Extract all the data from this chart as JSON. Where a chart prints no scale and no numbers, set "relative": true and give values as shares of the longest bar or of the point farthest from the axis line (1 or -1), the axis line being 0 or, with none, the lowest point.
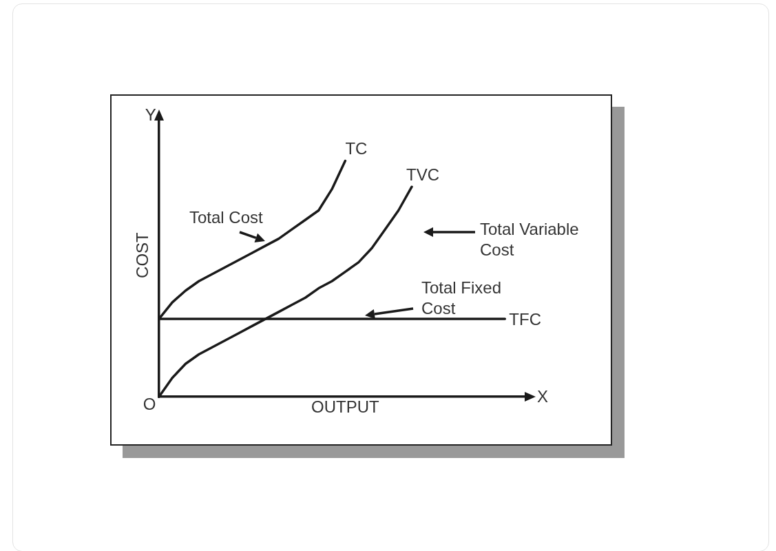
{
  "chart_data": {
    "type": "line",
    "relative": true,
    "xlabel": "OUTPUT",
    "ylabel": "COST",
    "legend": false,
    "grid": false,
    "marker": "none",
    "categories": [
      null,
      null,
      null,
      null,
      null,
      null,
      null,
      null,
      null,
      null,
      null,
      null,
      null,
      null,
      null,
      null,
      null,
      null,
      null,
      null,
      null,
      null,
      null,
      null,
      null,
      null,
      null,
      null,
      null
    ],
    "series": [
      {
        "name": "TC",
        "color": "#1a1a1a",
        "values": [
          0.33,
          0.4,
          0.45,
          0.49,
          0.52,
          0.55,
          0.58,
          0.61,
          0.64,
          0.67,
          0.71,
          0.75,
          0.79,
          0.88,
          1,
          null,
          null,
          null,
          null,
          null,
          null,
          null,
          null,
          null,
          null,
          null,
          null,
          null,
          null
        ]
      },
      {
        "name": "TVC",
        "color": "#1a1a1a",
        "values": [
          0,
          0.08,
          0.14,
          0.18,
          0.21,
          0.24,
          0.27,
          0.3,
          0.33,
          0.36,
          0.39,
          0.42,
          0.46,
          0.49,
          0.53,
          0.57,
          0.63,
          0.71,
          0.79,
          0.89,
          null,
          null,
          null,
          null,
          null,
          null,
          null,
          null,
          null
        ]
      },
      {
        "name": "TFC",
        "color": "#1a1a1a",
        "values": [
          0.33,
          0.33,
          0.33,
          0.33,
          0.33,
          0.33,
          0.33,
          0.33,
          0.33,
          0.33,
          0.33,
          0.33,
          0.33,
          0.33,
          0.33,
          0.33,
          0.33,
          0.33,
          0.33,
          0.33,
          0.33,
          0.33,
          0.33,
          0.33,
          0.33,
          0.33,
          0.33,
          null,
          null
        ]
      }
    ],
    "annotations": [
      "Total Cost",
      "Total Variable Cost",
      "Total Fixed Cost",
      "O",
      "X",
      "Y"
    ]
  }
}
